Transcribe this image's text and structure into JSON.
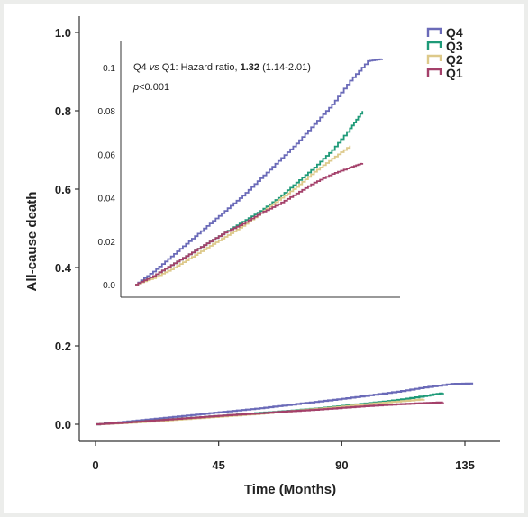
{
  "chart_data": [
    {
      "type": "line",
      "title": "",
      "xlabel": "Time (Months)",
      "ylabel": "All-cause death",
      "xlim": [
        0,
        140
      ],
      "ylim": [
        0,
        1.0
      ],
      "xticks": [
        "0",
        "45",
        "90",
        "135"
      ],
      "xtick_values": [
        0,
        45,
        90,
        135
      ],
      "yticks": [
        "0.0",
        "0.2",
        "0.4",
        "0.6",
        "0.8",
        "1.0"
      ],
      "ytick_values": [
        0,
        0.2,
        0.4,
        0.6,
        0.8,
        1.0
      ],
      "legend": "top-right",
      "series": [
        {
          "name": "Q4",
          "color": "#6a6ab8",
          "x": [
            0,
            10,
            20,
            30,
            40,
            50,
            60,
            70,
            80,
            90,
            100,
            110,
            120,
            130,
            138
          ],
          "y": [
            0,
            0.006,
            0.013,
            0.02,
            0.027,
            0.034,
            0.041,
            0.049,
            0.057,
            0.065,
            0.074,
            0.083,
            0.094,
            0.103,
            0.104
          ]
        },
        {
          "name": "Q3",
          "color": "#1e9a78",
          "x": [
            0,
            10,
            20,
            30,
            40,
            50,
            60,
            70,
            80,
            90,
            100,
            110,
            120,
            127
          ],
          "y": [
            0,
            0.004,
            0.009,
            0.014,
            0.019,
            0.024,
            0.029,
            0.034,
            0.04,
            0.047,
            0.054,
            0.062,
            0.072,
            0.08
          ]
        },
        {
          "name": "Q2",
          "color": "#ddc98a",
          "x": [
            0,
            10,
            20,
            30,
            40,
            50,
            60,
            70,
            80,
            90,
            100,
            110,
            120
          ],
          "y": [
            0,
            0.003,
            0.007,
            0.012,
            0.017,
            0.022,
            0.027,
            0.033,
            0.039,
            0.045,
            0.052,
            0.058,
            0.064
          ]
        },
        {
          "name": "Q1",
          "color": "#a4406a",
          "x": [
            0,
            10,
            20,
            30,
            40,
            50,
            60,
            70,
            80,
            90,
            100,
            110,
            120,
            127
          ],
          "y": [
            0,
            0.004,
            0.009,
            0.014,
            0.019,
            0.024,
            0.028,
            0.033,
            0.037,
            0.042,
            0.047,
            0.051,
            0.054,
            0.056
          ]
        }
      ]
    },
    {
      "type": "line",
      "title": "",
      "annotation_line1_pre": "Q4 ",
      "annotation_vs": "vs",
      "annotation_line1_mid": " Q1: Hazard ratio, ",
      "annotation_hr": "1.32",
      "annotation_ci": " (1.14-2.01)",
      "annotation_p_italic": "p",
      "annotation_p_rest": "<0.001",
      "ylim": [
        0,
        0.105
      ],
      "xlim": [
        0,
        140
      ],
      "yticks": [
        "0.1",
        "0.08",
        "0.06",
        "0.04",
        "0.02",
        "0.0"
      ],
      "ytick_values": [
        0.1,
        0.08,
        0.06,
        0.04,
        0.02,
        0
      ],
      "series": [
        {
          "name": "Q4",
          "color": "#6a6ab8",
          "x": [
            0,
            10,
            20,
            30,
            40,
            50,
            60,
            70,
            80,
            90,
            100,
            110,
            120,
            130,
            138
          ],
          "y": [
            0,
            0.006,
            0.013,
            0.02,
            0.027,
            0.034,
            0.041,
            0.049,
            0.057,
            0.065,
            0.074,
            0.083,
            0.094,
            0.103,
            0.104
          ]
        },
        {
          "name": "Q3",
          "color": "#1e9a78",
          "x": [
            0,
            10,
            20,
            30,
            40,
            50,
            60,
            70,
            80,
            90,
            100,
            110,
            120,
            127
          ],
          "y": [
            0,
            0.004,
            0.009,
            0.014,
            0.019,
            0.024,
            0.029,
            0.034,
            0.04,
            0.047,
            0.054,
            0.062,
            0.072,
            0.08
          ]
        },
        {
          "name": "Q2",
          "color": "#ddc98a",
          "x": [
            0,
            10,
            20,
            30,
            40,
            50,
            60,
            70,
            80,
            90,
            100,
            110,
            120
          ],
          "y": [
            0,
            0.003,
            0.007,
            0.012,
            0.017,
            0.022,
            0.027,
            0.033,
            0.039,
            0.045,
            0.052,
            0.058,
            0.064
          ]
        },
        {
          "name": "Q1",
          "color": "#a4406a",
          "x": [
            0,
            10,
            20,
            30,
            40,
            50,
            60,
            70,
            80,
            90,
            100,
            110,
            120,
            127
          ],
          "y": [
            0,
            0.004,
            0.009,
            0.014,
            0.019,
            0.024,
            0.028,
            0.033,
            0.037,
            0.042,
            0.047,
            0.051,
            0.054,
            0.056
          ]
        }
      ]
    }
  ]
}
